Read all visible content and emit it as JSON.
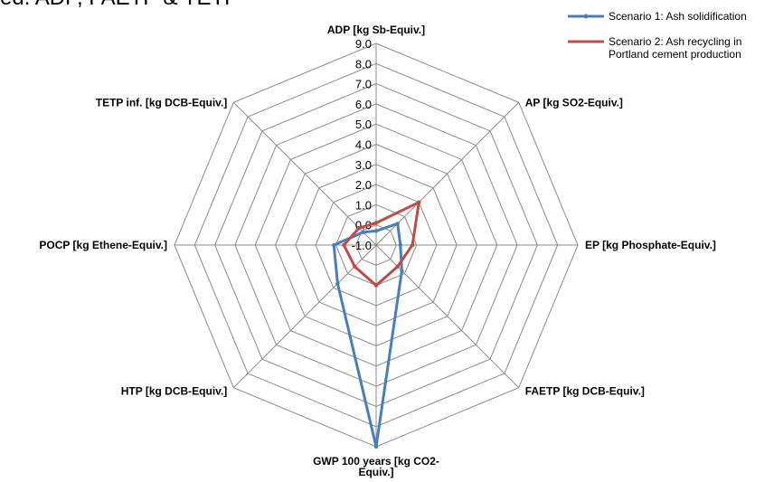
{
  "header": {
    "title_fragment": "ed: ADP, FAETP & TETP"
  },
  "chart_data": {
    "type": "radar",
    "title": "",
    "categories": [
      "ADP [kg Sb-Equiv.]",
      "AP [kg SO2-Equiv.]",
      "EP [kg Phosphate-Equiv.]",
      "FAETP [kg DCB-Equiv.]",
      "GWP 100 years [kg CO2-Equiv.]",
      "HTP  [kg DCB-Equiv.]",
      "POCP [kg Ethene-Equiv.]",
      "TETP inf. [kg DCB-Equiv.]"
    ],
    "category_lines": [
      [
        "ADP [kg Sb-Equiv.]"
      ],
      [
        "AP [kg SO2-Equiv.]"
      ],
      [
        "EP [kg Phosphate-Equiv.]"
      ],
      [
        "FAETP [kg DCB-Equiv.]"
      ],
      [
        "GWP 100 years [kg CO2-",
        "Equiv.]"
      ],
      [
        "HTP  [kg DCB-Equiv.]"
      ],
      [
        "POCP [kg Ethene-Equiv.]"
      ],
      [
        "TETP inf. [kg DCB-Equiv.]"
      ]
    ],
    "rlim": [
      -1.0,
      9.0
    ],
    "ticks": [
      "-1.0",
      "0.0",
      "1.0",
      "2.0",
      "3.0",
      "4.0",
      "5.0",
      "6.0",
      "7.0",
      "8.0",
      "9.0"
    ],
    "grid": true,
    "legend_position": "top-right",
    "series": [
      {
        "name": "Scenario 1: Ash solidification",
        "name_lines": [
          "Scenario 1: Ash solidification"
        ],
        "color": "#4a7ebb",
        "values": [
          -0.3,
          0.5,
          0.2,
          0.8,
          9.0,
          1.7,
          1.1,
          -0.1
        ]
      },
      {
        "name": "Scenario 2: Ash recycling in Portland cement production",
        "name_lines": [
          "Scenario 2: Ash recycling in",
          "Portland cement production"
        ],
        "color": "#be4b48",
        "values": [
          0.1,
          2.0,
          0.8,
          0.5,
          1.0,
          0.5,
          0.6,
          0.2
        ]
      }
    ]
  }
}
